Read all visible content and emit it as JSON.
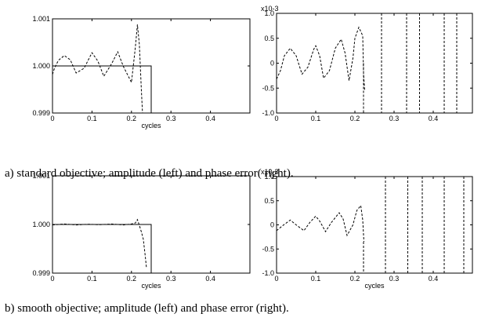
{
  "captions": {
    "a": "a) standard objective; amplitude (left) and phase error( right).",
    "b": "b) smooth objective; amplitude (left) and phase error (right)."
  },
  "colors": {
    "line": "#000000",
    "background": "#ffffff"
  },
  "chart_data": [
    {
      "id": "a-left",
      "type": "line",
      "xlabel": "cycles",
      "xlim": [
        0,
        0.5
      ],
      "ylim": [
        0.999,
        1.001
      ],
      "xticks": [
        0,
        0.1,
        0.2,
        0.3,
        0.4
      ],
      "xticklabels": [
        "0",
        "0.1",
        "0.2",
        "0.3",
        "0.4"
      ],
      "yticks": [
        0.999,
        1.0,
        1.001
      ],
      "yticklabels": [
        "0.999",
        "1.000",
        "1.001"
      ],
      "exponent_label": "",
      "series": [
        {
          "style": "solid",
          "x": [
            0,
            0.25,
            0.25
          ],
          "y": [
            1.0,
            1.0,
            0.999
          ]
        },
        {
          "style": "dashed",
          "x": [
            0,
            0.005,
            0.015,
            0.03,
            0.045,
            0.06,
            0.08,
            0.1,
            0.115,
            0.13,
            0.15,
            0.165,
            0.18,
            0.2,
            0.21,
            0.215,
            0.22,
            0.225,
            0.228
          ],
          "y": [
            0.99982,
            0.99995,
            1.00012,
            1.00022,
            1.00013,
            0.99985,
            0.99995,
            1.00028,
            1.0001,
            0.99978,
            1.00005,
            1.0003,
            0.99998,
            0.99965,
            1.0004,
            1.00088,
            1.00045,
            0.9995,
            0.999
          ]
        }
      ]
    },
    {
      "id": "a-right",
      "type": "line",
      "xlabel": "",
      "xlim": [
        0,
        0.5
      ],
      "ylim": [
        -1.0,
        1.0
      ],
      "xticks": [
        0,
        0.1,
        0.2,
        0.3,
        0.4
      ],
      "xticklabels": [
        "0",
        "0.1",
        "0.2",
        "0.3",
        "0.4"
      ],
      "yticks": [
        -1.0,
        -0.5,
        0,
        0.5,
        1.0
      ],
      "yticklabels": [
        "-1.0",
        "-0.5",
        "0",
        "0.5",
        "1.0"
      ],
      "exponent_label": "x10-3",
      "series": [
        {
          "style": "dashed",
          "x": [
            0,
            0.01,
            0.02,
            0.035,
            0.05,
            0.065,
            0.08,
            0.095,
            0.1,
            0.11,
            0.12,
            0.135,
            0.15,
            0.165,
            0.175,
            0.185,
            0.195,
            0.2,
            0.21,
            0.22,
            0.222,
            0.225
          ],
          "y": [
            -0.32,
            -0.15,
            0.15,
            0.3,
            0.15,
            -0.22,
            -0.08,
            0.28,
            0.35,
            0.15,
            -0.3,
            -0.15,
            0.3,
            0.48,
            0.2,
            -0.35,
            0.1,
            0.5,
            0.72,
            0.55,
            -0.2,
            -0.55
          ]
        },
        {
          "style": "dashed",
          "x": [
            0.222,
            0.222
          ],
          "y": [
            0.0,
            -1.0
          ]
        },
        {
          "style": "dashed",
          "x": [
            0.268,
            0.268
          ],
          "y": [
            1.0,
            -1.0
          ]
        },
        {
          "style": "dashed",
          "x": [
            0.332,
            0.332
          ],
          "y": [
            1.0,
            -1.0
          ]
        },
        {
          "style": "dashed",
          "x": [
            0.365,
            0.365
          ],
          "y": [
            1.0,
            -1.0
          ]
        },
        {
          "style": "dashed",
          "x": [
            0.428,
            0.428
          ],
          "y": [
            1.0,
            -1.0
          ]
        },
        {
          "style": "dashed",
          "x": [
            0.46,
            0.46
          ],
          "y": [
            1.0,
            -1.0
          ]
        }
      ]
    },
    {
      "id": "b-left",
      "type": "line",
      "xlabel": "cycles",
      "xlim": [
        0,
        0.5
      ],
      "ylim": [
        0.999,
        1.001
      ],
      "xticks": [
        0,
        0.1,
        0.2,
        0.3,
        0.4
      ],
      "xticklabels": [
        "0",
        "0.1",
        "0.2",
        "0.3",
        "0.4"
      ],
      "yticks": [
        0.999,
        1.0,
        1.001
      ],
      "yticklabels": [
        "0.999",
        "1.000",
        "1.001"
      ],
      "exponent_label": "",
      "series": [
        {
          "style": "solid",
          "x": [
            0,
            0.25,
            0.25
          ],
          "y": [
            1.0,
            1.0,
            0.999
          ]
        },
        {
          "style": "dashed",
          "x": [
            0,
            0.03,
            0.06,
            0.09,
            0.12,
            0.15,
            0.18,
            0.2,
            0.21,
            0.215,
            0.22,
            0.225,
            0.23,
            0.235,
            0.238
          ],
          "y": [
            0.99999,
            1.00001,
            0.99999,
            1.000005,
            0.999995,
            1.00001,
            0.99999,
            1.00001,
            1.00003,
            1.0001,
            0.99998,
            0.99985,
            0.9997,
            0.99935,
            0.9991
          ]
        }
      ]
    },
    {
      "id": "b-right",
      "type": "line",
      "xlabel": "cycles",
      "xlim": [
        0,
        0.5
      ],
      "ylim": [
        -1.0,
        1.0
      ],
      "xticks": [
        0,
        0.1,
        0.2,
        0.3,
        0.4
      ],
      "xticklabels": [
        "0",
        "0.1",
        "0.2",
        "0.3",
        "0.4"
      ],
      "yticks": [
        -1.0,
        -0.5,
        0,
        0.5,
        1.0
      ],
      "yticklabels": [
        "-1.0",
        "-0.5",
        "0",
        "0.5",
        "1.0"
      ],
      "exponent_label": "x10-3",
      "series": [
        {
          "style": "dashed",
          "x": [
            0,
            0.015,
            0.035,
            0.05,
            0.07,
            0.085,
            0.1,
            0.11,
            0.125,
            0.14,
            0.16,
            0.17,
            0.18,
            0.195,
            0.205,
            0.215,
            0.22,
            0.223
          ],
          "y": [
            -0.12,
            -0.02,
            0.1,
            0.0,
            -0.12,
            0.05,
            0.18,
            0.08,
            -0.14,
            0.05,
            0.25,
            0.12,
            -0.22,
            0.0,
            0.3,
            0.4,
            0.1,
            -0.35
          ]
        },
        {
          "style": "dashed",
          "x": [
            0.222,
            0.222
          ],
          "y": [
            -0.35,
            -1.0
          ]
        },
        {
          "style": "dashed",
          "x": [
            0.278,
            0.278
          ],
          "y": [
            1.0,
            -1.0
          ]
        },
        {
          "style": "dashed",
          "x": [
            0.335,
            0.335
          ],
          "y": [
            1.0,
            -1.0
          ]
        },
        {
          "style": "dashed",
          "x": [
            0.372,
            0.372
          ],
          "y": [
            1.0,
            -1.0
          ]
        },
        {
          "style": "dashed",
          "x": [
            0.428,
            0.428
          ],
          "y": [
            1.0,
            -1.0
          ]
        },
        {
          "style": "dashed",
          "x": [
            0.478,
            0.478
          ],
          "y": [
            1.0,
            -1.0
          ]
        }
      ]
    }
  ]
}
